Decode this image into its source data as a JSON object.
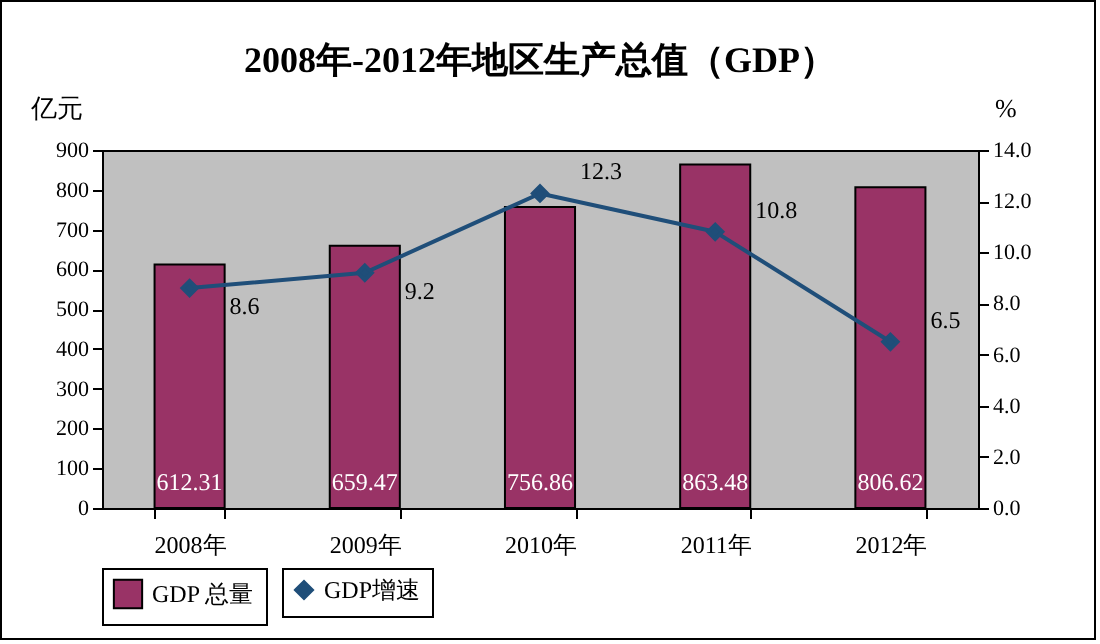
{
  "chart_data": {
    "type": "bar",
    "title": "2008年-2012年地区生产总值（GDP）",
    "ylabel": "亿元",
    "y2label": "%",
    "categories": [
      "2008年",
      "2009年",
      "2010年",
      "2011年",
      "2012年"
    ],
    "series": [
      {
        "name": "GDP 总量",
        "color": "#993366",
        "values": [
          612.31,
          659.47,
          756.86,
          863.48,
          806.62
        ]
      },
      {
        "name": "GDP增速",
        "type": "line",
        "axis": "y2",
        "color": "#1f4e79",
        "marker": "diamond",
        "values": [
          8.6,
          9.2,
          12.3,
          10.8,
          6.5
        ]
      }
    ],
    "ylim": [
      0,
      900
    ],
    "yticks": [
      0,
      100,
      200,
      300,
      400,
      500,
      600,
      700,
      800,
      900
    ],
    "y2lim": [
      0,
      14
    ],
    "y2ticks": [
      {
        "value": 0,
        "label": "0.0"
      },
      {
        "value": 2,
        "label": "2.0"
      },
      {
        "value": 4,
        "label": "4.0"
      },
      {
        "value": 6,
        "label": "6.0"
      },
      {
        "value": 8,
        "label": "8.0"
      },
      {
        "value": 10,
        "label": "10.0"
      },
      {
        "value": 12,
        "label": "12.0"
      },
      {
        "value": 14,
        "label": "14.0"
      }
    ],
    "grid": false,
    "legend": "bottom",
    "data_labels": true
  }
}
